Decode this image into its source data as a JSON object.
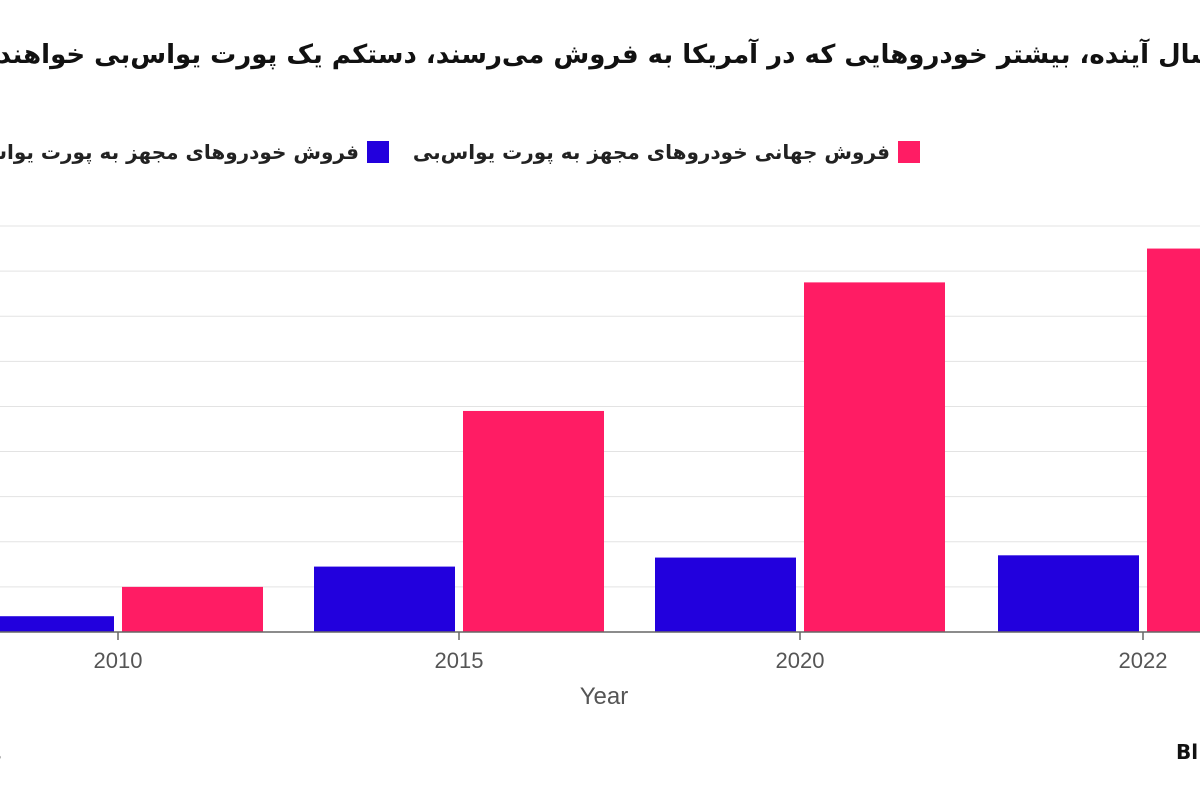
{
  "chart_data": {
    "type": "bar",
    "title": "سال آینده، بیشتر خودروهایی که در آمریکا به فروش می‌رسند، دستکم یک پورت یواس‌بی خواهند دا",
    "xlabel": "Year",
    "ylabel": "",
    "categories": [
      "2010",
      "2015",
      "2020",
      "2022"
    ],
    "series": [
      {
        "name": "فروش خودروهای مجهز به پورت یواس‌بی",
        "color": "#2200dd",
        "values": [
          0.35,
          1.45,
          1.65,
          1.7
        ]
      },
      {
        "name": "فروش جهانی خودروهای مجهز به پورت یواس‌بی",
        "color": "#ff1c64",
        "values": [
          1.0,
          4.9,
          7.75,
          8.5
        ]
      }
    ],
    "ylim": [
      0,
      9
    ],
    "grid": true,
    "legend_position": "top"
  },
  "footer": {
    "source_fragment": "s",
    "brand_fragment": "Bl"
  }
}
